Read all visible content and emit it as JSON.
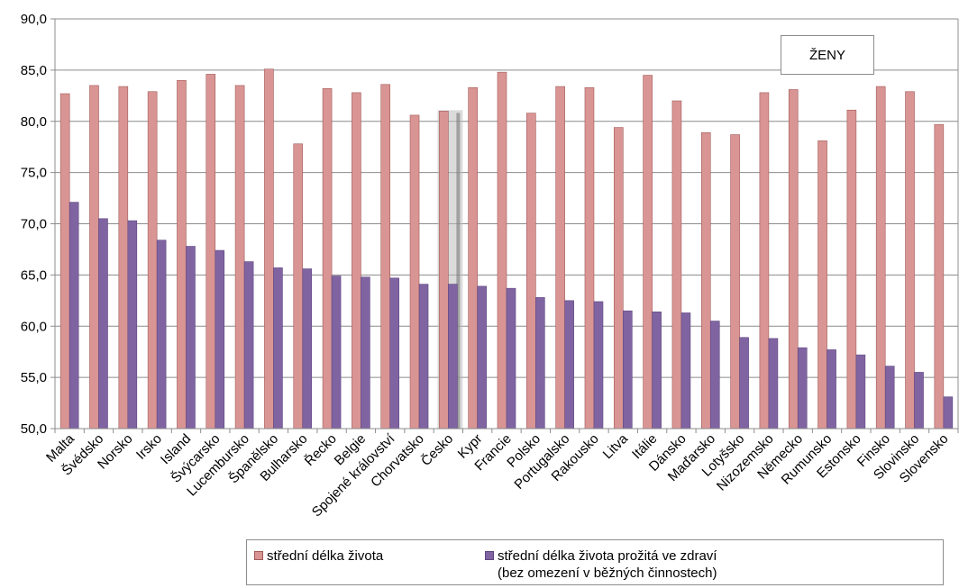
{
  "chart_data": {
    "type": "bar",
    "title": "ŽENY",
    "xlabel": "",
    "ylabel": "",
    "ylim": [
      50,
      90
    ],
    "y_ticks": [
      "50,0",
      "55,0",
      "60,0",
      "65,0",
      "70,0",
      "75,0",
      "80,0",
      "85,0",
      "90,0"
    ],
    "grid": true,
    "legend_position": "bottom",
    "highlighted_category": "Česko",
    "categories": [
      "Malta",
      "Švédsko",
      "Norsko",
      "Irsko",
      "Island",
      "Švýcarsko",
      "Lucembursko",
      "Španělsko",
      "Bulharsko",
      "Řecko",
      "Belgie",
      "Spojené království",
      "Chorvatsko",
      "Česko",
      "Kypr",
      "Francie",
      "Polsko",
      "Portugalsko",
      "Rakousko",
      "Litva",
      "Itálie",
      "Dánsko",
      "Maďarsko",
      "Lotyšsko",
      "Nizozemsko",
      "Německo",
      "Rumunsko",
      "Estonsko",
      "Finsko",
      "Slovinsko",
      "Slovensko"
    ],
    "series": [
      {
        "name": "střední délka života",
        "color": "#D99594",
        "values": [
          82.7,
          83.5,
          83.4,
          82.9,
          84.0,
          84.6,
          83.5,
          85.1,
          77.8,
          83.2,
          82.8,
          83.6,
          80.6,
          81.0,
          83.3,
          84.8,
          80.8,
          83.4,
          83.3,
          79.4,
          84.5,
          82.0,
          78.9,
          78.7,
          82.8,
          83.1,
          78.1,
          81.1,
          83.4,
          82.9,
          79.7
        ]
      },
      {
        "name": "střední délka života prožitá ve zdraví (bez omezení v běžných činnostech)",
        "name_lines": [
          "střední délka života prožitá ve zdraví",
          "(bez omezení v běžných činnostech)"
        ],
        "color": "#8064A2",
        "values": [
          72.1,
          70.5,
          70.3,
          68.4,
          67.8,
          67.4,
          66.3,
          65.7,
          65.6,
          64.9,
          64.8,
          64.7,
          64.1,
          64.1,
          63.9,
          63.7,
          62.8,
          62.5,
          62.4,
          61.5,
          61.4,
          61.3,
          60.5,
          58.9,
          58.8,
          57.9,
          57.7,
          57.2,
          56.1,
          55.5,
          53.1
        ]
      }
    ]
  }
}
